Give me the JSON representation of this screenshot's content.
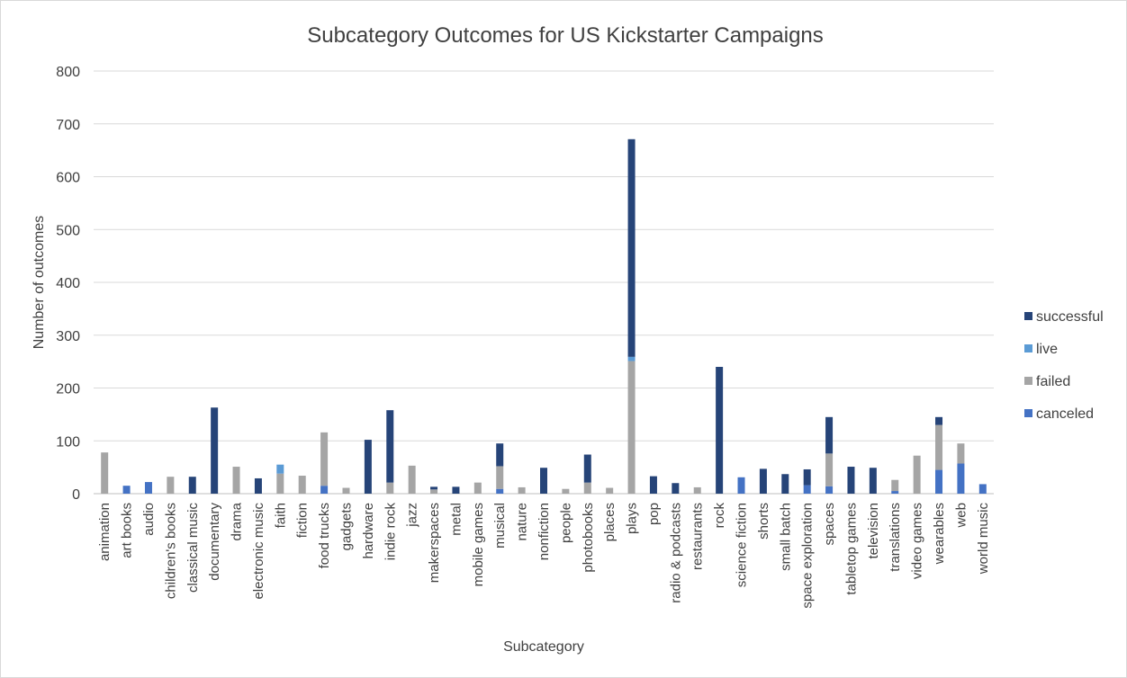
{
  "chart_data": {
    "type": "bar",
    "stacked": true,
    "title": "Subcategory Outcomes for US Kickstarter Campaigns",
    "xlabel": "Subcategory",
    "ylabel": "Number of outcomes",
    "ylim": [
      0,
      800
    ],
    "yticks": [
      0,
      100,
      200,
      300,
      400,
      500,
      600,
      700,
      800
    ],
    "grid": true,
    "legend_position": "right",
    "categories": [
      "animation",
      "art books",
      "audio",
      "children's books",
      "classical music",
      "documentary",
      "drama",
      "electronic music",
      "faith",
      "fiction",
      "food trucks",
      "gadgets",
      "hardware",
      "indie rock",
      "jazz",
      "makerspaces",
      "metal",
      "mobile games",
      "musical",
      "nature",
      "nonfiction",
      "people",
      "photobooks",
      "places",
      "plays",
      "pop",
      "radio & podcasts",
      "restaurants",
      "rock",
      "science fiction",
      "shorts",
      "small batch",
      "space exploration",
      "spaces",
      "tabletop games",
      "television",
      "translations",
      "video games",
      "wearables",
      "web",
      "world music"
    ],
    "series": [
      {
        "name": "canceled",
        "color": "#4472c4",
        "values": [
          0,
          15,
          22,
          0,
          0,
          0,
          0,
          0,
          0,
          0,
          15,
          0,
          0,
          0,
          0,
          0,
          0,
          0,
          9,
          0,
          0,
          0,
          0,
          0,
          0,
          0,
          0,
          0,
          0,
          31,
          0,
          0,
          16,
          14,
          0,
          0,
          5,
          0,
          45,
          57,
          18
        ]
      },
      {
        "name": "failed",
        "color": "#a5a5a5",
        "values": [
          78,
          0,
          0,
          32,
          0,
          0,
          51,
          0,
          38,
          34,
          101,
          11,
          0,
          21,
          53,
          8,
          0,
          21,
          43,
          12,
          0,
          9,
          21,
          11,
          251,
          0,
          0,
          12,
          0,
          0,
          0,
          0,
          0,
          62,
          0,
          0,
          21,
          72,
          85,
          38,
          0
        ]
      },
      {
        "name": "live",
        "color": "#5b9bd5",
        "values": [
          0,
          0,
          0,
          0,
          0,
          0,
          0,
          0,
          17,
          0,
          0,
          0,
          0,
          0,
          0,
          0,
          0,
          0,
          0,
          0,
          0,
          0,
          0,
          0,
          8,
          0,
          0,
          0,
          0,
          0,
          0,
          0,
          0,
          0,
          0,
          0,
          0,
          0,
          0,
          0,
          0
        ]
      },
      {
        "name": "successful",
        "color": "#264478",
        "values": [
          0,
          0,
          0,
          0,
          32,
          163,
          0,
          29,
          0,
          0,
          0,
          0,
          102,
          137,
          0,
          5,
          13,
          0,
          43,
          0,
          49,
          0,
          53,
          0,
          412,
          33,
          20,
          0,
          240,
          0,
          47,
          37,
          30,
          69,
          51,
          49,
          0,
          0,
          15,
          0,
          0
        ]
      }
    ],
    "legend_order": [
      "successful",
      "live",
      "failed",
      "canceled"
    ]
  }
}
